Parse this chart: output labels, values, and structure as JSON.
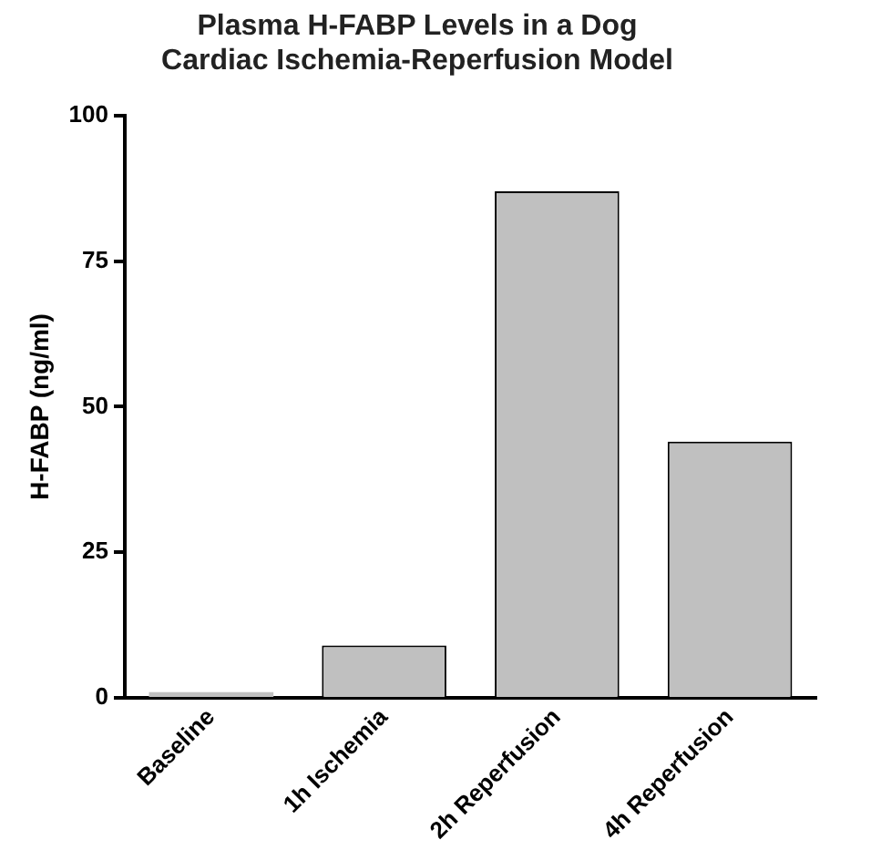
{
  "chart_data": {
    "type": "bar",
    "title": [
      "Plasma H-FABP Levels in a Dog",
      "Cardiac Ischemia-Reperfusion Model"
    ],
    "ylabel": "H-FABP (ng/ml)",
    "categories": [
      "Baseline",
      "1h Ischemia",
      "2h Reperfusion",
      "4h Reperfusion"
    ],
    "values": [
      1,
      9,
      87,
      44
    ],
    "color": "#c0c0c0",
    "ylim": [
      0,
      100
    ],
    "yticks": [
      0,
      25,
      50,
      75,
      100
    ],
    "grid": false,
    "legend": false
  }
}
